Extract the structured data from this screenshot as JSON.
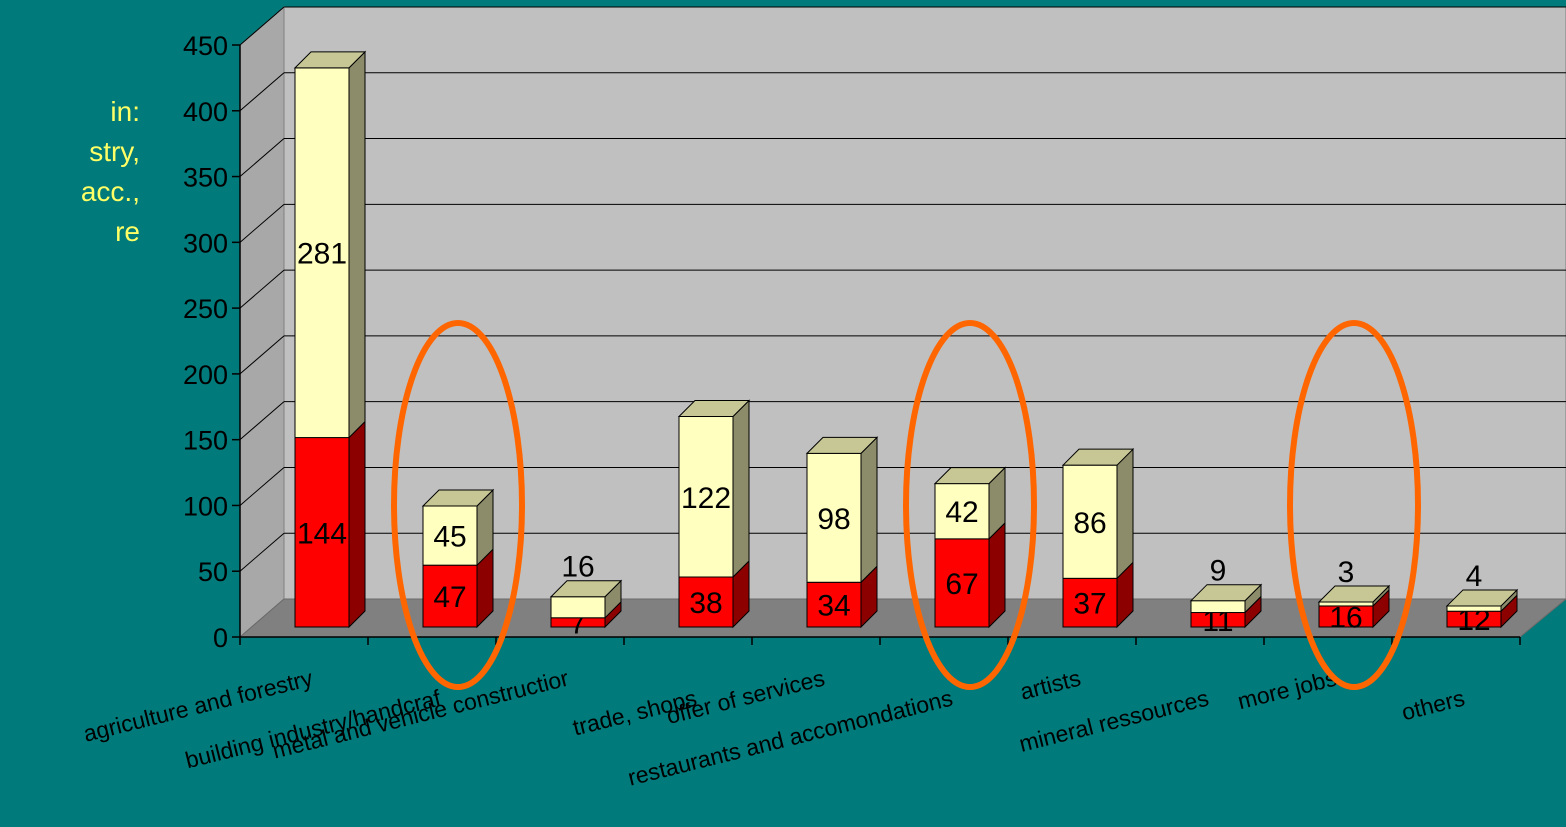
{
  "side_text": [
    "in:",
    "stry,",
    "acc.,",
    "re"
  ],
  "chart_data": {
    "type": "bar",
    "stacked": true,
    "three_d": true,
    "categories": [
      "agriculture and forestry",
      "building industry/handcraf",
      "metal and vehicle constructior",
      "trade, shops",
      "offer of services",
      "restaurants and accomondations",
      "artists",
      "mineral ressources",
      "more jobs",
      "others"
    ],
    "series": [
      {
        "values": [
          144,
          47,
          7,
          38,
          34,
          67,
          37,
          11,
          16,
          12
        ],
        "color": "#ff0000"
      },
      {
        "values": [
          281,
          45,
          16,
          122,
          98,
          42,
          86,
          9,
          3,
          4
        ],
        "color": "#ffffc0"
      }
    ],
    "ylim": [
      0,
      450
    ],
    "yticks": [
      0,
      50,
      100,
      150,
      200,
      250,
      300,
      350,
      400,
      450
    ],
    "grid": true,
    "highlighted_categories": [
      1,
      5,
      8
    ],
    "highlight_color": "#ff6600",
    "wall_color": "#c0c0c0",
    "floor_color": "#808080"
  }
}
